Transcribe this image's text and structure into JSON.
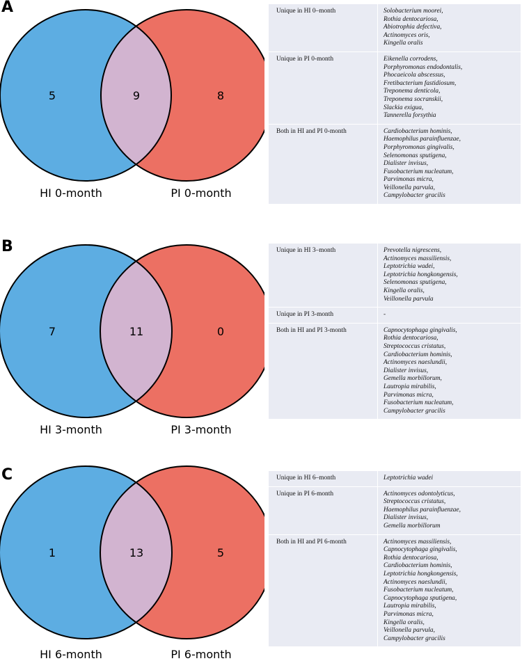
{
  "colors": {
    "left": "#5dade2",
    "right": "#ec7063",
    "overlap": "#d2b4d0",
    "outline": "#000000"
  },
  "panels": [
    {
      "letter": "A",
      "venn": {
        "left_label": "HI 0-month",
        "right_label": "PI 0-month",
        "left_only": "5",
        "both": "9",
        "right_only": "8"
      },
      "rows": [
        {
          "category": "Unique in HI 0–month",
          "species": [
            "Solobacterium moorei,",
            "Rothia dentocariosa,",
            "Abiotrophia defectiva,",
            "Actinomyces oris,",
            "Kingella oralis"
          ]
        },
        {
          "category": "Unique in PI 0-month",
          "species": [
            "Eikenella corrodens,",
            "Porphyromonas endodontalis,",
            "Phocaeicola abscessus,",
            "Fretibacterium fastidiosum,",
            "Treponema denticola,",
            "Treponema socranskii,",
            "Slackia exigua,",
            "Tannerella forsythia"
          ]
        },
        {
          "category": "Both in HI and PI 0-month",
          "species": [
            "Cardiobacterium hominis,",
            "Haemophilus parainfluenzae,",
            "Porphyromonas gingivalis,",
            "Selenomonas sputigena,",
            "Dialister invisus,",
            "Fusobacterium nucleatum,",
            "Parvimonas micra,",
            "Veillonella parvula,",
            "Campylobacter gracilis"
          ]
        }
      ]
    },
    {
      "letter": "B",
      "venn": {
        "left_label": "HI 3-month",
        "right_label": "PI 3-month",
        "left_only": "7",
        "both": "11",
        "right_only": "0"
      },
      "rows": [
        {
          "category": "Unique in HI 3–month",
          "species": [
            "Prevotella nigrescens,",
            "Actinomyces massiliensis,",
            "Leptotrichia wadei,",
            "Leptotrichia hongkongensis,",
            "Selenomonas sputigena,",
            "Kingella oralis,",
            "Veillonella parvula"
          ]
        },
        {
          "category": "Unique in PI 3-month",
          "species": [
            "-"
          ]
        },
        {
          "category": "Both in HI and PI 3-month",
          "species": [
            "Capnocytophaga gingivalis,",
            "Rothia dentocariosa,",
            "Streptococcus cristatus,",
            "Cardiobacterium hominis,",
            "Actinomyces naeslundii,",
            "Dialister invisus,",
            "Gemella morbillorum,",
            "Lautropia mirabilis,",
            " Parvimonas micra,",
            "Fusobacterium nucleatum,",
            "Campylobacter gracilis"
          ]
        }
      ]
    },
    {
      "letter": "C",
      "venn": {
        "left_label": "HI 6-month",
        "right_label": "PI 6-month",
        "left_only": "1",
        "both": "13",
        "right_only": "5"
      },
      "rows": [
        {
          "category": "Unique in HI 6–month",
          "species": [
            "Leptotrichia wadei"
          ]
        },
        {
          "category": "Unique in PI 6-month",
          "species": [
            "Actinomyces odontolyticus,",
            "Streptococcus cristatus,",
            "Haemophilus parainfluenzae,",
            "Dialister invisus,",
            "Gemella morbillorum"
          ]
        },
        {
          "category": "Both in HI and PI 6-month",
          "species": [
            "Actinomyces massiliensis,",
            "Capnocytophaga gingivalis,",
            "Rothia dentocariosa,",
            "Cardiobacterium hominis,",
            "Leptotrichia hongkongensis,",
            "Actinomyces naeslundii,",
            "Fusobacterium nucleatum,",
            "Capnocytophaga sputigena,",
            "Lautropia mirabilis,",
            "Parvimonas micra,",
            "Kingella oralis,",
            "Veillonella parvula,",
            "Campylobacter gracilis"
          ]
        }
      ]
    }
  ]
}
